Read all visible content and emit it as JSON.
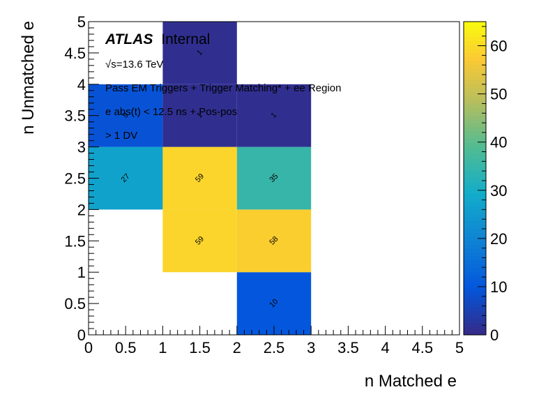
{
  "chart_data": {
    "type": "heatmap",
    "xlabel": "n Matched e",
    "ylabel": "n Unmatched e",
    "xlim": [
      0,
      5
    ],
    "ylim": [
      0,
      5
    ],
    "x_ticks": [
      "0",
      "0.5",
      "1",
      "1.5",
      "2",
      "2.5",
      "3",
      "3.5",
      "4",
      "4.5",
      "5"
    ],
    "y_ticks": [
      "0",
      "0.5",
      "1",
      "1.5",
      "2",
      "2.5",
      "3",
      "3.5",
      "4",
      "4.5",
      "5"
    ],
    "z_range": [
      0,
      65
    ],
    "colorbar_ticks": [
      "0",
      "10",
      "20",
      "30",
      "40",
      "50",
      "60"
    ],
    "colormap": "parula",
    "cells": [
      {
        "x_bin": [
          2,
          3
        ],
        "y_bin": [
          0,
          1
        ],
        "value": 10
      },
      {
        "x_bin": [
          1,
          2
        ],
        "y_bin": [
          1,
          2
        ],
        "value": 59
      },
      {
        "x_bin": [
          2,
          3
        ],
        "y_bin": [
          1,
          2
        ],
        "value": 58
      },
      {
        "x_bin": [
          0,
          1
        ],
        "y_bin": [
          2,
          3
        ],
        "value": 27
      },
      {
        "x_bin": [
          1,
          2
        ],
        "y_bin": [
          2,
          3
        ],
        "value": 59
      },
      {
        "x_bin": [
          2,
          3
        ],
        "y_bin": [
          2,
          3
        ],
        "value": 35
      },
      {
        "x_bin": [
          0,
          1
        ],
        "y_bin": [
          3,
          4
        ],
        "value": 9
      },
      {
        "x_bin": [
          1,
          2
        ],
        "y_bin": [
          3,
          4
        ],
        "value": 1
      },
      {
        "x_bin": [
          2,
          3
        ],
        "y_bin": [
          3,
          4
        ],
        "value": 1
      },
      {
        "x_bin": [
          1,
          2
        ],
        "y_bin": [
          4,
          5
        ],
        "value": 1
      }
    ],
    "annotations": {
      "atlas": "ATLAS",
      "atlas_suffix": "Internal",
      "energy": "√s=13.6 TeV",
      "line1": "Pass EM Triggers + Trigger Matching* + ee Region",
      "line2": "e abs(t) < 12.5 ns + Pos-pos",
      "line3": "> 1 DV"
    }
  }
}
